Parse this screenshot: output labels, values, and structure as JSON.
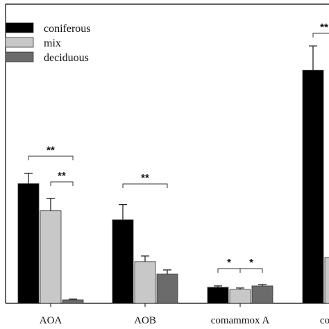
{
  "chart_data": {
    "type": "bar",
    "title": "",
    "xlabel": "",
    "ylabel": "",
    "categories": [
      "AOA",
      "AOB",
      "comammox A",
      "comammox B"
    ],
    "visible_category_labels": [
      "AOA",
      "AOB",
      "comammox A",
      "comam"
    ],
    "series": [
      {
        "name": "coniferous",
        "color": "#000000",
        "values": [
          172,
          120,
          23,
          335
        ],
        "errors": [
          15,
          22,
          2,
          35
        ]
      },
      {
        "name": "mix",
        "color": "#c8c8c8",
        "values": [
          133,
          60,
          20,
          66
        ],
        "errors": [
          18,
          8,
          2,
          null
        ]
      },
      {
        "name": "deciduous",
        "color": "#6b6b6b",
        "values": [
          5,
          42,
          25,
          null
        ],
        "errors": [
          1,
          6,
          2,
          null
        ]
      }
    ],
    "ylim": [
      0,
      430
    ],
    "grid": false,
    "legend_position": "top-left",
    "significance": [
      {
        "category": "AOA",
        "pair": [
          "coniferous",
          "deciduous"
        ],
        "label": "**"
      },
      {
        "category": "AOA",
        "pair": [
          "mix",
          "deciduous"
        ],
        "label": "**"
      },
      {
        "category": "AOB",
        "pair": [
          "coniferous",
          "deciduous"
        ],
        "label": "**"
      },
      {
        "category": "comammox A",
        "pair": [
          "coniferous",
          "mix"
        ],
        "label": "*"
      },
      {
        "category": "comammox A",
        "pair": [
          "mix",
          "deciduous"
        ],
        "label": "*"
      },
      {
        "category": "comammox B",
        "pair": [
          "coniferous",
          "mix"
        ],
        "label": "**"
      }
    ]
  }
}
